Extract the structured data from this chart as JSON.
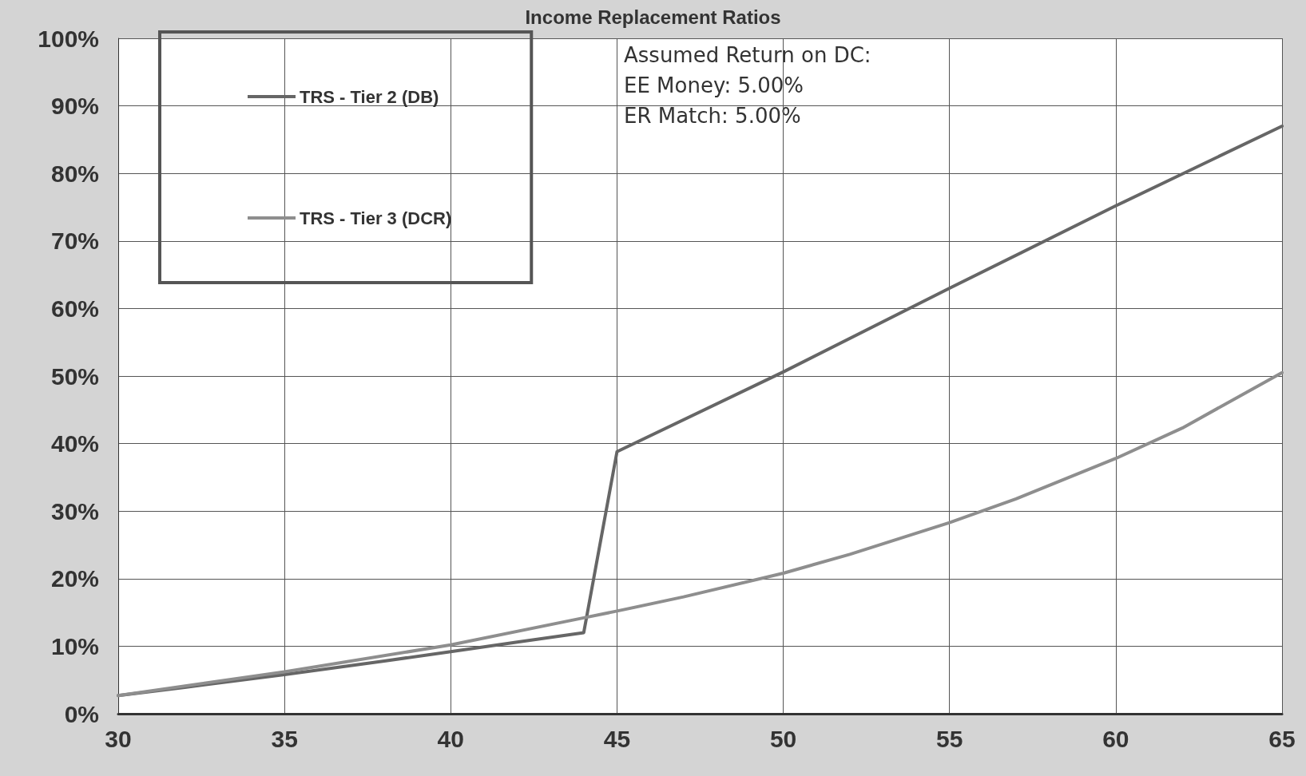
{
  "chart_data": {
    "type": "line",
    "title": "Income Replacement Ratios",
    "annotations": [
      "Assumed Return on DC:",
      "EE Money: 5.00%",
      "ER Match: 5.00%"
    ],
    "series": [
      {
        "name": "TRS - Tier 2 (DB)",
        "color": "#666666",
        "x": [
          30,
          32,
          35,
          38,
          40,
          42,
          44,
          45,
          50,
          55,
          60,
          65
        ],
        "values": [
          2.7,
          3.9,
          5.8,
          7.8,
          9.2,
          10.6,
          12.0,
          38.8,
          50.6,
          63.0,
          75.2,
          87.0
        ]
      },
      {
        "name": "TRS - Tier 3 (DCR)",
        "color": "#8e8e8e",
        "x": [
          30,
          35,
          40,
          44,
          45,
          47,
          50,
          52,
          55,
          57,
          60,
          62,
          65
        ],
        "values": [
          2.7,
          6.2,
          10.2,
          14.2,
          15.2,
          17.3,
          20.8,
          23.6,
          28.3,
          31.8,
          37.8,
          42.3,
          50.5
        ]
      }
    ],
    "xlim": [
      30,
      65
    ],
    "xticks": [
      30,
      35,
      40,
      45,
      50,
      55,
      60,
      65
    ],
    "ylim": [
      0,
      100
    ],
    "yticks": [
      {
        "value": 0,
        "label": "0%"
      },
      {
        "value": 10,
        "label": "10%"
      },
      {
        "value": 20,
        "label": "20%"
      },
      {
        "value": 30,
        "label": "30%"
      },
      {
        "value": 40,
        "label": "40%"
      },
      {
        "value": 50,
        "label": "50%"
      },
      {
        "value": 60,
        "label": "60%"
      },
      {
        "value": 70,
        "label": "70%"
      },
      {
        "value": 80,
        "label": "80%"
      },
      {
        "value": 90,
        "label": "90%"
      },
      {
        "value": 100,
        "label": "100%"
      }
    ],
    "grid": true,
    "legend": "top left",
    "marker": "none",
    "line_style": "solid"
  }
}
